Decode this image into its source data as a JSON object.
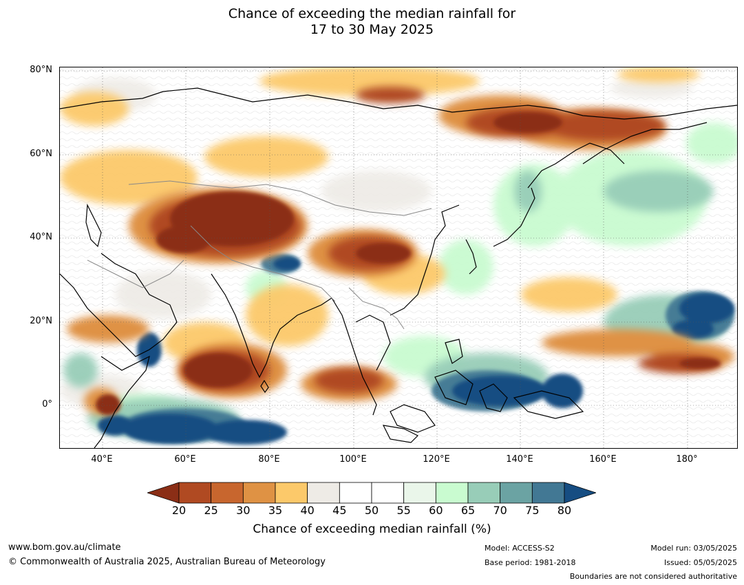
{
  "title": {
    "line1": "Chance of exceeding the median rainfall for",
    "line2": "17 to 30 May 2025"
  },
  "axes": {
    "lat_labels": [
      "80°N",
      "60°N",
      "40°N",
      "20°N",
      "0°"
    ],
    "lon_labels": [
      "40°E",
      "60°E",
      "80°E",
      "100°E",
      "120°E",
      "140°E",
      "160°E",
      "180°"
    ]
  },
  "colorbar": {
    "ticks": [
      "20",
      "25",
      "30",
      "35",
      "40",
      "45",
      "50",
      "55",
      "60",
      "65",
      "70",
      "75",
      "80"
    ],
    "colors": [
      "#8b2e16",
      "#b04a22",
      "#c8662e",
      "#df9244",
      "#fcc96a",
      "#eeebe6",
      "#ffffff",
      "#ffffff",
      "#eaf6ea",
      "#c9fbd0",
      "#98cdb8",
      "#6ba3a3",
      "#427894",
      "#164d82"
    ],
    "label": "Chance of exceeding median rainfall (%)"
  },
  "footer": {
    "website": "www.bom.gov.au/climate",
    "copyright": "© Commonwealth of Australia 2025, Australian Bureau of Meteorology",
    "model": "Model: ACCESS-S2",
    "base_period": "Base period: 1981-2018",
    "model_run": "Model run: 03/05/2025",
    "issued": "Issued: 05/05/2025",
    "disclaimer": "Boundaries are not considered authoritative"
  }
}
